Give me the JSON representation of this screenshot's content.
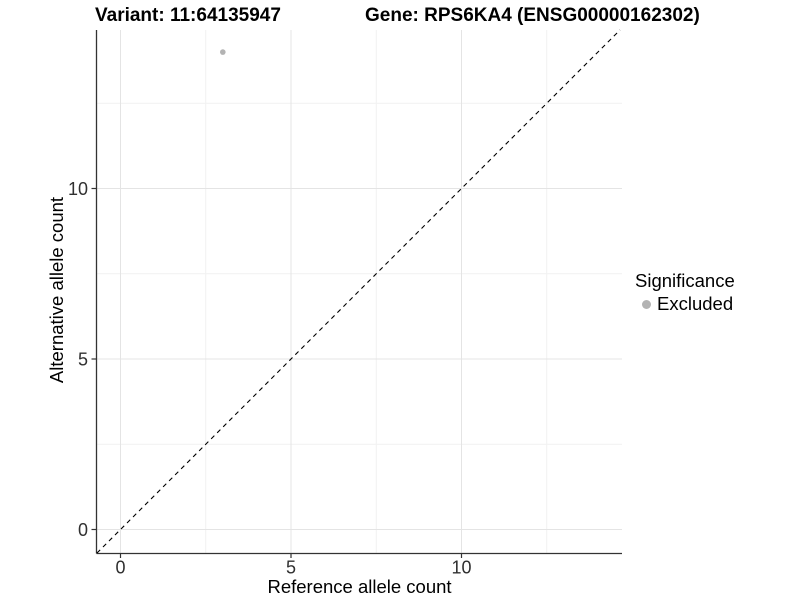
{
  "chart_data": {
    "type": "scatter",
    "title_left": "Variant: 11:64135947",
    "title_right": "Gene: RPS6KA4 (ENSG00000162302)",
    "xlabel": "Reference allele count",
    "ylabel": "Alternative allele count",
    "xlim": [
      -0.69,
      14.7
    ],
    "ylim": [
      -0.69,
      14.65
    ],
    "x_ticks": [
      0,
      5,
      10
    ],
    "y_ticks": [
      0,
      5,
      10
    ],
    "x_minor_ticks": [
      2.5,
      7.5,
      12.5
    ],
    "y_minor_ticks": [
      2.5,
      7.5,
      12.5
    ],
    "grid": "major+minor",
    "legend_position": "right",
    "reference_line": {
      "kind": "identity y=x",
      "style": "dashed",
      "color": "#000000"
    },
    "series": [
      {
        "name": "Excluded",
        "marker": "circle",
        "color": "#b3b3b3",
        "points": [
          [
            3,
            14
          ]
        ]
      }
    ],
    "legend": {
      "title": "Significance",
      "entries": [
        {
          "label": "Excluded",
          "color": "#b3b3b3"
        }
      ]
    },
    "colors": {
      "background": "#ffffff",
      "grid_major": "#e4e4e4",
      "grid_minor": "#f1f1f1",
      "axis_line": "#333333",
      "tick_text": "#303030",
      "point": "#b3b3b3"
    }
  }
}
